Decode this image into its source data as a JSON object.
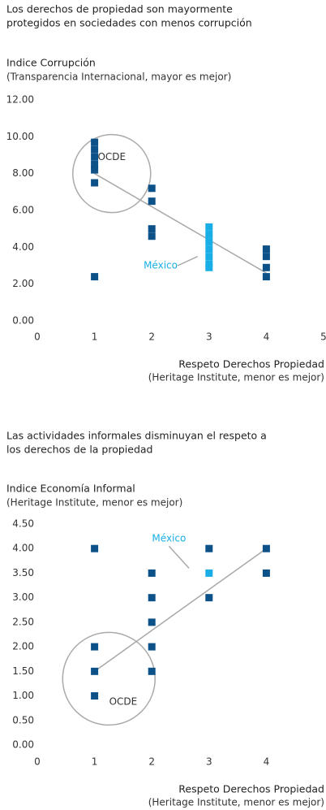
{
  "chart_data": [
    {
      "type": "scatter",
      "title": [
        "Los derechos de propiedad son mayormente",
        "protegidos en sociedades con menos corrupción"
      ],
      "y_label": "Indice Corrupción",
      "y_sublabel": "(Transparencia Internacional, mayor es mejor)",
      "x_label": "Respeto Derechos Propiedad",
      "x_sublabel": "(Heritage Institute, menor es mejor)",
      "xlim": [
        0,
        5
      ],
      "xticks": [
        0,
        1,
        2,
        3,
        4,
        5
      ],
      "ylim": [
        0,
        12
      ],
      "yticks": [
        {
          "value": 0,
          "label": "0.00"
        },
        {
          "value": 2,
          "label": "2.00"
        },
        {
          "value": 4,
          "label": "4.00"
        },
        {
          "value": 6,
          "label": "6.00"
        },
        {
          "value": 8,
          "label": "8.00"
        },
        {
          "value": 10,
          "label": "10.00"
        },
        {
          "value": 12,
          "label": "12.00"
        }
      ],
      "series": [
        {
          "color": "#0d5189",
          "x": [
            1,
            1,
            1,
            1,
            1,
            1,
            1,
            2,
            2,
            2,
            2,
            4,
            4,
            4,
            4
          ],
          "values": [
            9.7,
            9.3,
            8.9,
            8.5,
            8.2,
            7.5,
            2.4,
            7.2,
            6.5,
            5.0,
            4.6,
            3.9,
            3.5,
            2.9,
            2.4
          ]
        },
        {
          "color": "#19afe6",
          "x": [
            3,
            3,
            3,
            3,
            3,
            3,
            3
          ],
          "values": [
            5.1,
            4.7,
            4.3,
            3.9,
            3.5,
            3.1,
            2.9
          ]
        }
      ],
      "trendline": {
        "color": "#a8a8a8",
        "x": [
          1,
          4
        ],
        "values": [
          8.0,
          2.6
        ]
      },
      "annotations": [
        "OCDE",
        "México"
      ]
    },
    {
      "type": "scatter",
      "title": [
        "Las actividades informales disminuyan el respeto a",
        "los derechos de la propiedad"
      ],
      "y_label": "Indice Economía Informal",
      "y_sublabel": "(Heritage Institute, menor es mejor)",
      "x_label": "Respeto Derechos Propiedad",
      "x_sublabel": "(Heritage Institute, menor es mejor)",
      "xlim": [
        0,
        5
      ],
      "xticks": [
        0,
        1,
        2,
        3,
        4
      ],
      "ylim": [
        0,
        4.5
      ],
      "yticks": [
        {
          "value": 0,
          "label": "0.00"
        },
        {
          "value": 0.5,
          "label": "0.50"
        },
        {
          "value": 1,
          "label": "1.00"
        },
        {
          "value": 1.5,
          "label": "1.50"
        },
        {
          "value": 2,
          "label": "2.00"
        },
        {
          "value": 2.5,
          "label": "2.50"
        },
        {
          "value": 3,
          "label": "3.00"
        },
        {
          "value": 3.5,
          "label": "3.50"
        },
        {
          "value": 4,
          "label": "4.00"
        },
        {
          "value": 4.5,
          "label": "4.50"
        }
      ],
      "series": [
        {
          "color": "#0d5189",
          "x": [
            1,
            1,
            1,
            1,
            2,
            2,
            2,
            2,
            2,
            3,
            3,
            4,
            4
          ],
          "values": [
            4.0,
            2.0,
            1.5,
            1.0,
            3.5,
            3.0,
            2.5,
            2.0,
            1.5,
            4.0,
            3.0,
            4.0,
            3.5
          ]
        },
        {
          "color": "#19afe6",
          "x": [
            3
          ],
          "values": [
            3.5
          ]
        }
      ],
      "trendline": {
        "color": "#a8a8a8",
        "x": [
          1,
          4
        ],
        "values": [
          1.5,
          4.0
        ]
      },
      "annotations": [
        "OCDE",
        "México"
      ]
    }
  ]
}
